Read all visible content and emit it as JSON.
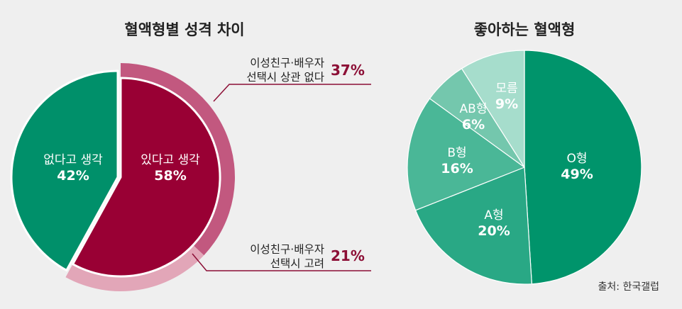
{
  "chart_data": [
    {
      "type": "pie",
      "title": "혈액형별 성격 차이",
      "slices": [
        {
          "label": "있다고 생각",
          "value": 58,
          "display": "58%",
          "color": "#990034"
        },
        {
          "label": "없다고 생각",
          "value": 42,
          "display": "42%",
          "color": "#00906a"
        }
      ],
      "breakdown": [
        {
          "parent": "있다고 생각",
          "label_lines": [
            "이성친구·배우자",
            "선택시 상관 없다"
          ],
          "value": 37,
          "display": "37%",
          "color": "#c2587f"
        },
        {
          "parent": "있다고 생각",
          "label_lines": [
            "이성친구·배우자",
            "선택시 고려"
          ],
          "value": 21,
          "display": "21%",
          "color": "#e2a6b8"
        }
      ]
    },
    {
      "type": "pie",
      "title": "좋아하는 혈액형",
      "slices": [
        {
          "label": "O형",
          "value": 49,
          "display": "49%",
          "color": "#00946b"
        },
        {
          "label": "A형",
          "value": 20,
          "display": "20%",
          "color": "#29a885"
        },
        {
          "label": "B형",
          "value": 16,
          "display": "16%",
          "color": "#4ab797"
        },
        {
          "label": "AB형",
          "value": 6,
          "display": "6%",
          "color": "#74c7ad"
        },
        {
          "label": "모름",
          "value": 9,
          "display": "9%",
          "color": "#a6ddcc"
        }
      ]
    }
  ],
  "source": "출처: 한국갤럽",
  "colors": {
    "accent_text": "#8c0f36",
    "title_text": "#222222",
    "leader_line": "#8c0f36",
    "background": "#efefef"
  }
}
